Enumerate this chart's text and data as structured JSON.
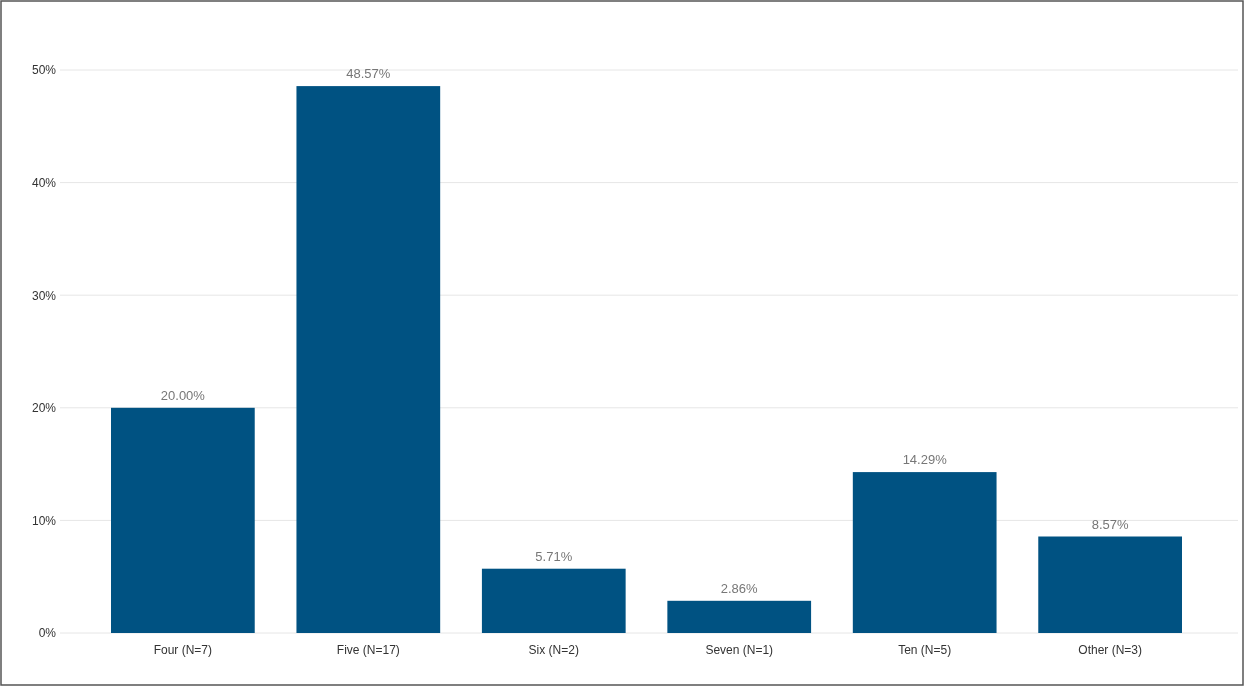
{
  "chart_data": {
    "type": "bar",
    "categories": [
      "Four (N=7)",
      "Five (N=17)",
      "Six (N=2)",
      "Seven (N=1)",
      "Ten (N=5)",
      "Other (N=3)"
    ],
    "values": [
      20.0,
      48.57,
      5.71,
      2.86,
      14.29,
      8.57
    ],
    "value_labels": [
      "20.00%",
      "48.57%",
      "5.71%",
      "2.86%",
      "14.29%",
      "8.57%"
    ],
    "color": "#005282",
    "ylim": [
      0,
      50
    ],
    "yticks": [
      {
        "value": 0,
        "label": "0%"
      },
      {
        "value": 10,
        "label": "10%"
      },
      {
        "value": 20,
        "label": "20%"
      },
      {
        "value": 30,
        "label": "30%"
      },
      {
        "value": 40,
        "label": "40%"
      },
      {
        "value": 50,
        "label": "50%"
      }
    ],
    "grid": "y"
  }
}
